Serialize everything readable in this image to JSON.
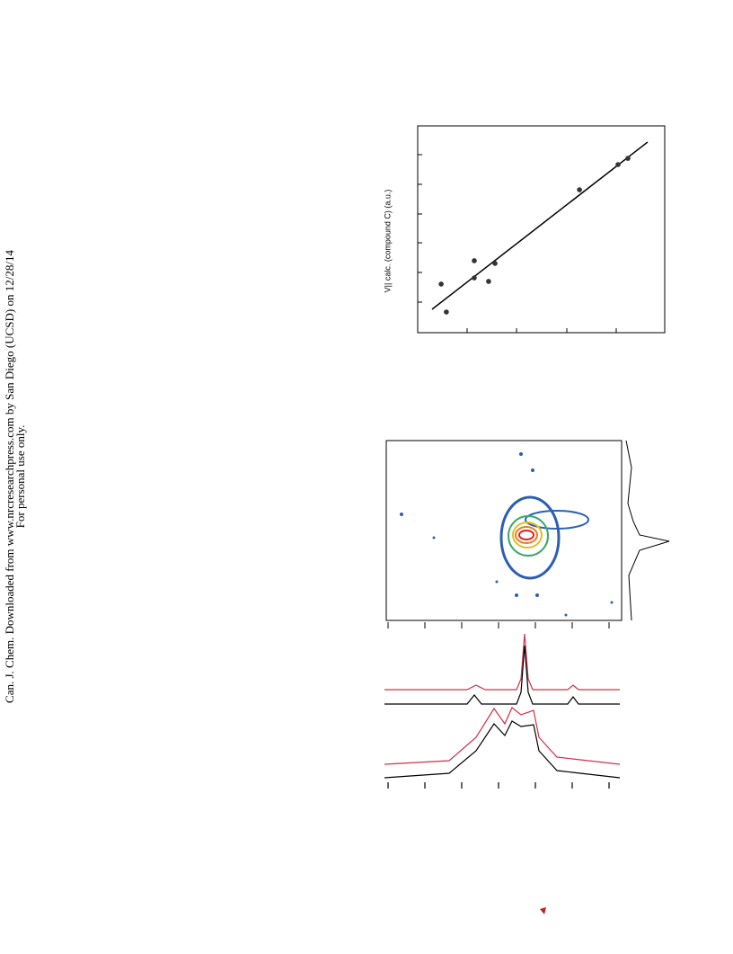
{
  "watermark": {
    "line1": "Can. J. Chem. Downloaded from www.nrcresearchpress.com by San Diego (UCSD) on 12/28/14",
    "line2": "For personal use only."
  },
  "chart_data": {
    "type": "scatter",
    "y_label": "V|| calc. (compound C) (a.u.)",
    "x": [
      9.5,
      11.6,
      22.9,
      22.9,
      28.7,
      31.3,
      65.5,
      81.1,
      85.1
    ],
    "values": [
      23.5,
      10.0,
      34.8,
      26.5,
      24.8,
      33.5,
      69.1,
      81.3,
      84.3
    ],
    "color": "#333333",
    "fit": {
      "x": [
        5.8,
        93.1
      ],
      "values": [
        11.3,
        92.2
      ]
    },
    "xlim": [
      0,
      100
    ],
    "ylim": [
      0,
      100
    ]
  }
}
